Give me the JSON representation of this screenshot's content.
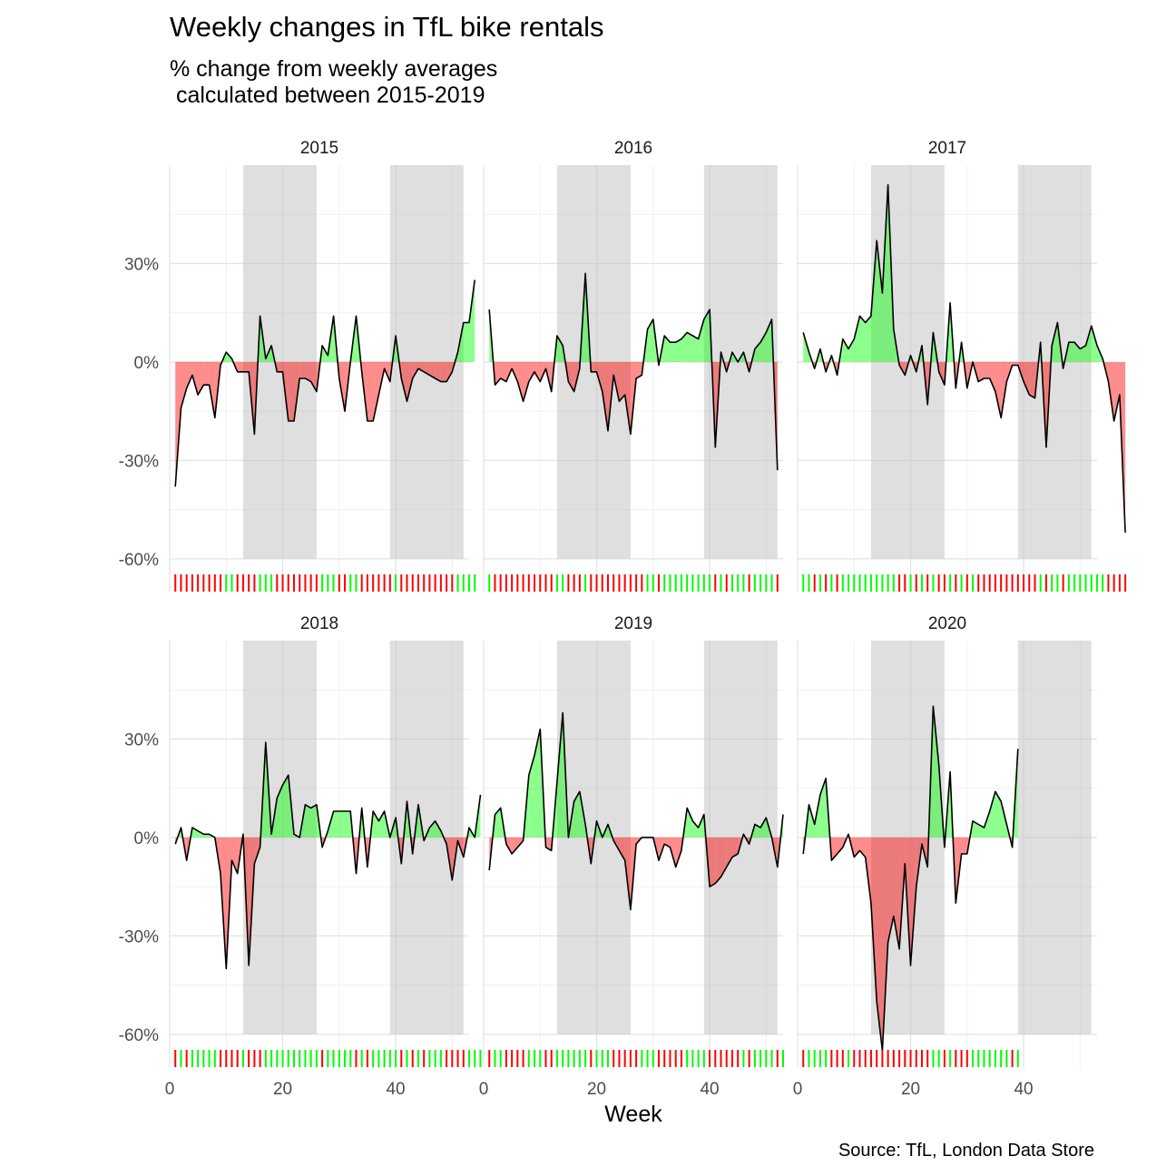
{
  "chart_data": {
    "type": "area",
    "title": "Weekly changes in TfL bike rentals",
    "subtitle": "% change from weekly averages\n calculated between 2015-2019",
    "caption": "Source: TfL, London Data Store",
    "xlabel": "Week",
    "ylabel": "",
    "xlim": [
      0,
      53
    ],
    "ylim": [
      -70,
      60
    ],
    "x_ticks": [
      0,
      20,
      40
    ],
    "x_tick_labels": [
      "0",
      "20",
      "40"
    ],
    "y_ticks": [
      -60,
      -30,
      0,
      30
    ],
    "y_tick_labels": [
      "-60%",
      "-30%",
      "0%",
      "30%"
    ],
    "grid": true,
    "shaded_week_ranges": [
      [
        13,
        26
      ],
      [
        39,
        52
      ]
    ],
    "colors": {
      "positive": "#00ff00",
      "negative": "#ff0000",
      "shade": "#bfbfbf",
      "line": "#000000"
    },
    "facets": [
      {
        "label": "2015",
        "x_start": 1,
        "values": [
          -38,
          -14,
          -8,
          -4,
          -10,
          -7,
          -7,
          -17,
          -1,
          3,
          1,
          -3,
          -3,
          -3,
          -22,
          14,
          1,
          5,
          -3,
          -3,
          -18,
          -18,
          -5,
          -5,
          -6,
          -9,
          5,
          2,
          14,
          -5,
          -15,
          0,
          14,
          -3,
          -18,
          -18,
          -10,
          -2,
          -6,
          8,
          -5,
          -12,
          -5,
          -2,
          -3,
          -4,
          -5,
          -6,
          -6,
          -3,
          3,
          12,
          12,
          25
        ]
      },
      {
        "label": "2016",
        "x_start": 1,
        "values": [
          16,
          -7,
          -5,
          -6,
          -2,
          -6,
          -12,
          -6,
          -3,
          -6,
          -2,
          -9,
          8,
          5,
          -6,
          -9,
          -2,
          27,
          -3,
          -3,
          -9,
          -21,
          -4,
          -12,
          -10,
          -22,
          -5,
          -4,
          10,
          13,
          -1,
          8,
          6,
          6,
          7,
          9,
          8,
          7,
          13,
          16,
          -26,
          3,
          -3,
          3,
          0,
          3,
          -3,
          4,
          6,
          9,
          13,
          -33
        ]
      },
      {
        "label": "2017",
        "x_start": 1,
        "values": [
          9,
          3,
          -2,
          4,
          -3,
          2,
          -4,
          7,
          4,
          7,
          14,
          12,
          14,
          37,
          21,
          54,
          10,
          -1,
          -4,
          2,
          -3,
          5,
          -13,
          9,
          -3,
          -7,
          18,
          -8,
          6,
          -8,
          0,
          -6,
          -5,
          -5,
          -9,
          -17,
          -6,
          -1,
          -1,
          -6,
          -10,
          -11,
          6,
          -26,
          5,
          12,
          -2,
          6,
          6,
          4,
          5,
          11,
          5,
          1,
          -6,
          -18,
          -10,
          -52
        ]
      },
      {
        "label": "2018",
        "x_start": 1,
        "values": [
          -2,
          3,
          -7,
          3,
          2,
          1,
          1,
          0,
          -11,
          -40,
          -7,
          -11,
          1,
          -39,
          -8,
          -3,
          29,
          1,
          12,
          16,
          19,
          1,
          0,
          10,
          9,
          10,
          -3,
          2,
          8,
          8,
          8,
          8,
          -11,
          9,
          -9,
          8,
          5,
          8,
          0,
          6,
          -8,
          11,
          -5,
          10,
          -1,
          3,
          5,
          2,
          -2,
          -13,
          -1,
          -6,
          3,
          0,
          13
        ]
      },
      {
        "label": "2019",
        "x_start": 1,
        "values": [
          -10,
          7,
          9,
          -2,
          -5,
          -3,
          -1,
          19,
          25,
          33,
          -3,
          -4,
          17,
          38,
          0,
          11,
          14,
          4,
          -8,
          5,
          0,
          4,
          -1,
          -4,
          -7,
          -22,
          -2,
          0,
          0,
          0,
          -7,
          -2,
          -3,
          -9,
          -4,
          9,
          5,
          3,
          7,
          -15,
          -14,
          -12,
          -9,
          -6,
          -5,
          1,
          -2,
          4,
          3,
          6,
          0,
          -9,
          7
        ]
      },
      {
        "label": "2020",
        "x_start": 1,
        "values": [
          -5,
          10,
          4,
          13,
          18,
          -7,
          -5,
          -3,
          1,
          -6,
          -4,
          -6,
          -20,
          -50,
          -65,
          -32,
          -24,
          -34,
          -8,
          -39,
          -15,
          -2,
          -9,
          40,
          22,
          -3,
          20,
          -20,
          -5,
          -5,
          5,
          4,
          3,
          8,
          14,
          11,
          4,
          -3,
          27
        ]
      }
    ]
  }
}
